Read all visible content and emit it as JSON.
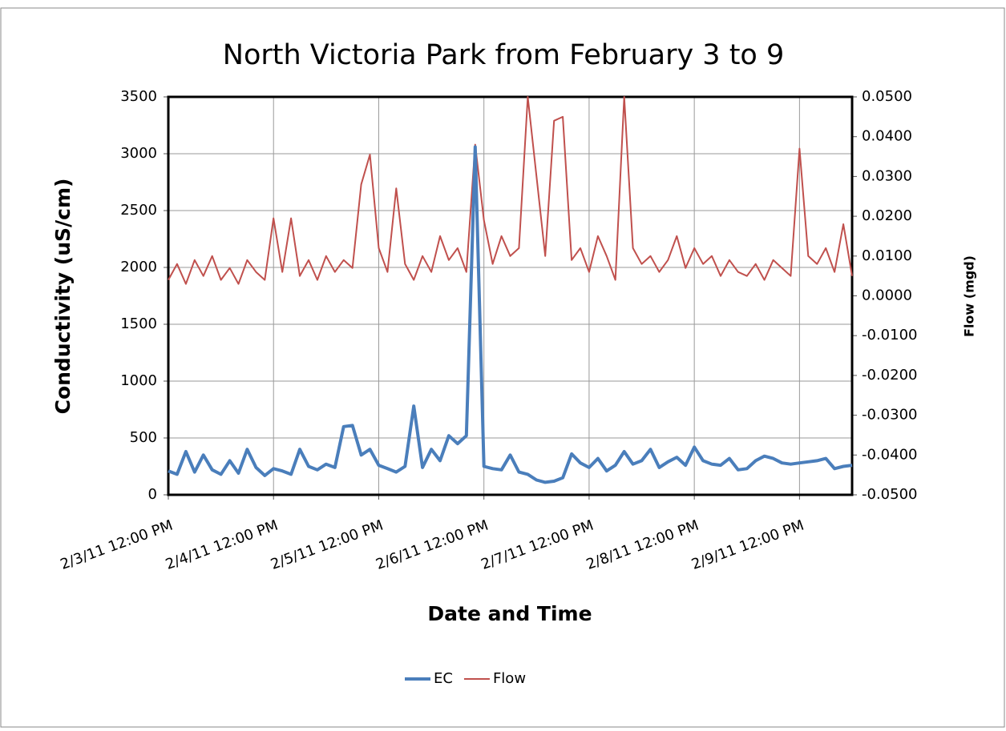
{
  "chart_data": {
    "type": "line",
    "title": "North Victoria Park from February 3 to 9",
    "x_label": "Date and Time",
    "y_label": "Conductivity (uS/cm)",
    "y2_label": "Flow (mgd)",
    "x": [
      "2011-02-03T12:00",
      "2011-02-03T14:00",
      "2011-02-03T16:00",
      "2011-02-03T18:00",
      "2011-02-03T20:00",
      "2011-02-03T22:00",
      "2011-02-04T00:00",
      "2011-02-04T02:00",
      "2011-02-04T04:00",
      "2011-02-04T06:00",
      "2011-02-04T08:00",
      "2011-02-04T10:00",
      "2011-02-04T12:00",
      "2011-02-04T14:00",
      "2011-02-04T16:00",
      "2011-02-04T18:00",
      "2011-02-04T20:00",
      "2011-02-04T22:00",
      "2011-02-05T00:00",
      "2011-02-05T02:00",
      "2011-02-05T04:00",
      "2011-02-05T06:00",
      "2011-02-05T08:00",
      "2011-02-05T10:00",
      "2011-02-05T12:00",
      "2011-02-05T14:00",
      "2011-02-05T16:00",
      "2011-02-05T18:00",
      "2011-02-05T20:00",
      "2011-02-05T22:00",
      "2011-02-06T00:00",
      "2011-02-06T02:00",
      "2011-02-06T04:00",
      "2011-02-06T06:00",
      "2011-02-06T08:00",
      "2011-02-06T10:00",
      "2011-02-06T12:00",
      "2011-02-06T14:00",
      "2011-02-06T16:00",
      "2011-02-06T18:00",
      "2011-02-06T20:00",
      "2011-02-06T22:00",
      "2011-02-07T00:00",
      "2011-02-07T02:00",
      "2011-02-07T04:00",
      "2011-02-07T06:00",
      "2011-02-07T08:00",
      "2011-02-07T10:00",
      "2011-02-07T12:00",
      "2011-02-07T14:00",
      "2011-02-07T16:00",
      "2011-02-07T18:00",
      "2011-02-07T20:00",
      "2011-02-07T22:00",
      "2011-02-08T00:00",
      "2011-02-08T02:00",
      "2011-02-08T04:00",
      "2011-02-08T06:00",
      "2011-02-08T08:00",
      "2011-02-08T10:00",
      "2011-02-08T12:00",
      "2011-02-08T14:00",
      "2011-02-08T16:00",
      "2011-02-08T18:00",
      "2011-02-08T20:00",
      "2011-02-08T22:00",
      "2011-02-09T00:00",
      "2011-02-09T02:00",
      "2011-02-09T04:00",
      "2011-02-09T06:00",
      "2011-02-09T08:00",
      "2011-02-09T10:00",
      "2011-02-09T12:00",
      "2011-02-09T14:00",
      "2011-02-09T16:00",
      "2011-02-09T18:00",
      "2011-02-09T20:00",
      "2011-02-09T22:00",
      "2011-02-10T00:00"
    ],
    "series": [
      {
        "name": "EC",
        "color": "#4a7ebb",
        "values": [
          210,
          180,
          380,
          200,
          350,
          220,
          180,
          300,
          190,
          400,
          240,
          170,
          230,
          210,
          180,
          400,
          250,
          220,
          270,
          240,
          600,
          610,
          350,
          400,
          260,
          230,
          200,
          250,
          780,
          240,
          400,
          300,
          520,
          450,
          520,
          3060,
          250,
          230,
          220,
          350,
          200,
          180,
          130,
          110,
          120,
          150,
          360,
          280,
          240,
          320,
          210,
          260,
          380,
          270,
          300,
          400,
          240,
          290,
          330,
          260,
          420,
          300,
          270,
          260,
          320,
          220,
          230,
          300,
          340,
          320,
          280,
          270,
          280,
          290,
          300,
          320,
          230,
          250,
          260
        ]
      },
      {
        "name": "Flow",
        "color": "#c0504d",
        "axis": "y2",
        "values": [
          0.004,
          0.008,
          0.003,
          0.009,
          0.005,
          0.01,
          0.004,
          0.007,
          0.003,
          0.009,
          0.006,
          0.004,
          0.0195,
          0.006,
          0.0195,
          0.005,
          0.009,
          0.004,
          0.01,
          0.006,
          0.009,
          0.007,
          0.028,
          0.0355,
          0.012,
          0.006,
          0.027,
          0.008,
          0.004,
          0.01,
          0.006,
          0.015,
          0.009,
          0.012,
          0.006,
          0.038,
          0.019,
          0.008,
          0.015,
          0.01,
          0.012,
          0.05,
          0.03,
          0.01,
          0.044,
          0.045,
          0.009,
          0.012,
          0.006,
          0.015,
          0.01,
          0.004,
          0.05,
          0.012,
          0.008,
          0.01,
          0.006,
          0.009,
          0.015,
          0.007,
          0.012,
          0.008,
          0.01,
          0.005,
          0.009,
          0.006,
          0.005,
          0.008,
          0.004,
          0.009,
          0.007,
          0.005,
          0.037,
          0.01,
          0.008,
          0.012,
          0.006,
          0.018,
          0.005
        ]
      }
    ],
    "xlim": [
      "2011-02-03T12:00",
      "2011-02-10T00:00"
    ],
    "xticks": [
      {
        "value": "2011-02-03T12:00",
        "label": "2/3/11 12:00 PM"
      },
      {
        "value": "2011-02-04T12:00",
        "label": "2/4/11 12:00 PM"
      },
      {
        "value": "2011-02-05T12:00",
        "label": "2/5/11 12:00 PM"
      },
      {
        "value": "2011-02-06T12:00",
        "label": "2/6/11 12:00 PM"
      },
      {
        "value": "2011-02-07T12:00",
        "label": "2/7/11 12:00 PM"
      },
      {
        "value": "2011-02-08T12:00",
        "label": "2/8/11 12:00 PM"
      },
      {
        "value": "2011-02-09T12:00",
        "label": "2/9/11 12:00 PM"
      }
    ],
    "ylim": [
      0,
      3500
    ],
    "yticks": [
      0,
      500,
      1000,
      1500,
      2000,
      2500,
      3000,
      3500
    ],
    "y2lim": [
      -0.05,
      0.05
    ],
    "y2ticks": [
      {
        "value": -0.05,
        "label": "-0.0500"
      },
      {
        "value": -0.04,
        "label": "-0.0400"
      },
      {
        "value": -0.03,
        "label": "-0.0300"
      },
      {
        "value": -0.02,
        "label": "-0.0200"
      },
      {
        "value": -0.01,
        "label": "-0.0100"
      },
      {
        "value": 0,
        "label": "0.0000"
      },
      {
        "value": 0.01,
        "label": "0.0100"
      },
      {
        "value": 0.02,
        "label": "0.0200"
      },
      {
        "value": 0.03,
        "label": "0.0300"
      },
      {
        "value": 0.04,
        "label": "0.0400"
      },
      {
        "value": 0.05,
        "label": "0.0500"
      }
    ],
    "grid": true,
    "legend": "bottom"
  }
}
